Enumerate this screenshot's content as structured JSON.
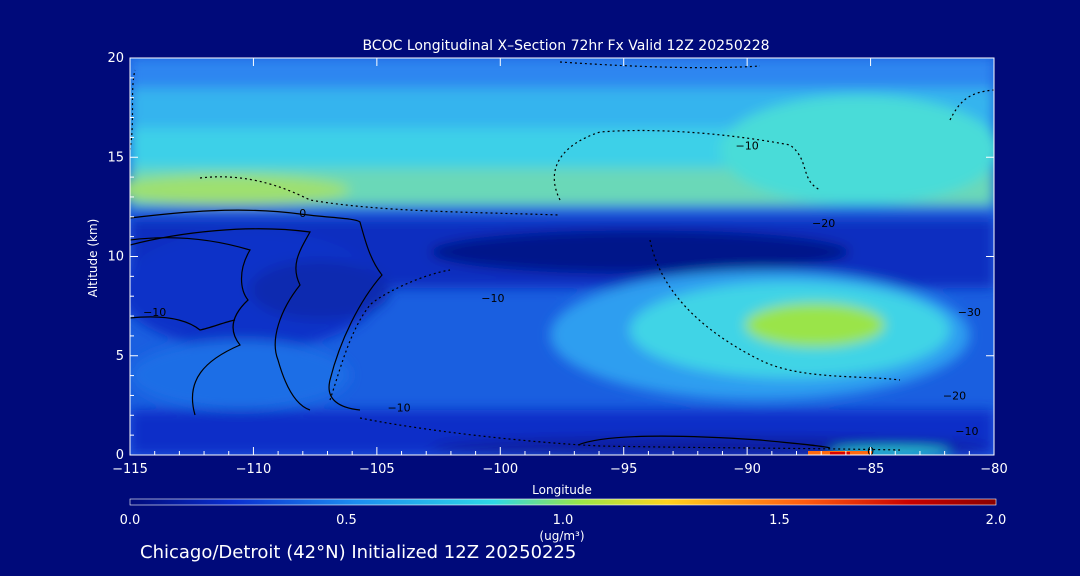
{
  "chart_data": {
    "type": "heatmap",
    "title": "BCOC Longitudinal X–Section 72hr  Fx Valid 12Z 20250228",
    "xlabel": "Longitude",
    "ylabel": "Altitude (km)",
    "xlim": [
      -115,
      -80
    ],
    "ylim": [
      0,
      20
    ],
    "x_ticks": [
      "−115",
      "−110",
      "−105",
      "−100",
      "−95",
      "−90",
      "−85",
      "−80"
    ],
    "x_tick_values": [
      -115,
      -110,
      -105,
      -100,
      -95,
      -90,
      -85,
      -80
    ],
    "y_ticks": [
      "0",
      "5",
      "10",
      "15",
      "20"
    ],
    "y_tick_values": [
      0,
      5,
      10,
      15,
      20
    ],
    "colorbar": {
      "min": 0.0,
      "max": 2.0,
      "tick_labels": [
        "0.0",
        "0.5",
        "1.0",
        "1.5",
        "2.0"
      ],
      "tick_values": [
        0.0,
        0.5,
        1.0,
        1.5,
        2.0
      ],
      "unit_label": "(ug/m³)",
      "colors": [
        "#000a7a",
        "#0a2fd0",
        "#1c8df0",
        "#2ed8e6",
        "#b8e632",
        "#ffd21e",
        "#ff5a10",
        "#c80000",
        "#8a0000"
      ]
    },
    "contour_labels": [
      {
        "text": "0",
        "lon": -108.0,
        "alt": 12.2
      },
      {
        "text": "−10",
        "lon": -114.0,
        "alt": 7.2
      },
      {
        "text": "−10",
        "lon": -104.1,
        "alt": 2.4
      },
      {
        "text": "−10",
        "lon": -100.3,
        "alt": 7.9
      },
      {
        "text": "−10",
        "lon": -90.0,
        "alt": 15.6
      },
      {
        "text": "−20",
        "lon": -86.9,
        "alt": 11.7
      },
      {
        "text": "−30",
        "lon": -81.0,
        "alt": 7.2
      },
      {
        "text": "−20",
        "lon": -81.6,
        "alt": 3.0
      },
      {
        "text": "−10",
        "lon": -81.1,
        "alt": 1.2
      },
      {
        "text": "0",
        "lon": -85.0,
        "alt": 0.2
      }
    ]
  },
  "footer": {
    "caption": "Chicago/Detroit (42°N) Initialized 12Z 20250225"
  }
}
